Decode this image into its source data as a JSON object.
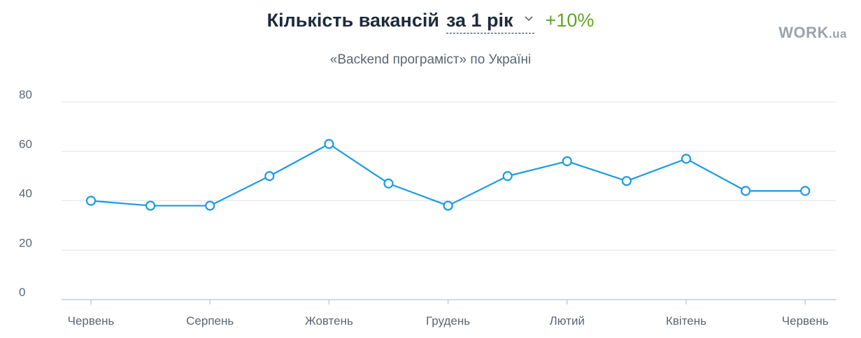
{
  "header": {
    "title": "Кількість вакансій",
    "period_label": "за 1 рік",
    "change": "+10%",
    "subtitle": "«Backend програміст» по Україні"
  },
  "logo": {
    "main": "WORK",
    "suffix": ".ua"
  },
  "colors": {
    "line": "#1a9be2",
    "grid": "#dde2e6",
    "change": "#5fa624",
    "logo": "#9aa4ad"
  },
  "icons": {
    "period_dropdown": "chevron-down-icon"
  },
  "chart_data": {
    "type": "line",
    "x": [
      "Червень",
      "",
      "Серпень",
      "",
      "Жовтень",
      "",
      "Грудень",
      "",
      "Лютий",
      "",
      "Квітень",
      "",
      "Червень"
    ],
    "x_tick_labels": [
      "Червень",
      "Серпень",
      "Жовтень",
      "Грудень",
      "Лютий",
      "Квітень",
      "Червень"
    ],
    "series": [
      {
        "values": [
          40,
          38,
          38,
          50,
          63,
          47,
          38,
          50,
          56,
          48,
          57,
          44,
          44
        ]
      }
    ],
    "y_ticks": [
      "0",
      "20",
      "40",
      "60",
      "80"
    ],
    "ylim": [
      0,
      80
    ],
    "grid": true,
    "legend": "none"
  }
}
